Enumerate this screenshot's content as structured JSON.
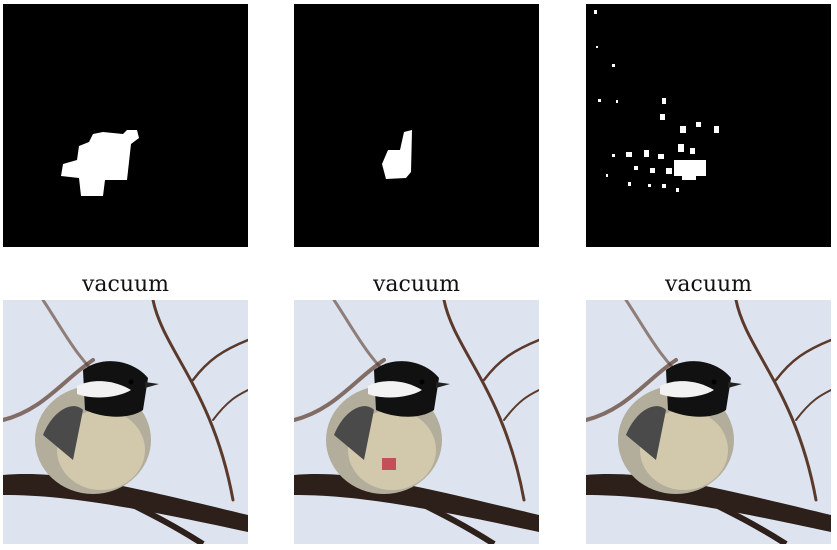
{
  "panels": [
    {
      "caption": "vacuum",
      "variant": "a"
    },
    {
      "caption": "vacuum",
      "variant": "b"
    },
    {
      "caption": "vacuum",
      "variant": "c"
    }
  ],
  "colors": {
    "mask_background": "#000000",
    "mask_foreground": "#ffffff",
    "sky": "#dde4ef",
    "branch": "#3b2a22",
    "bird_cap": "#111111",
    "bird_cheek": "#f2f2f2",
    "bird_belly": "#c9c1a6",
    "patch": "#c0394b"
  }
}
